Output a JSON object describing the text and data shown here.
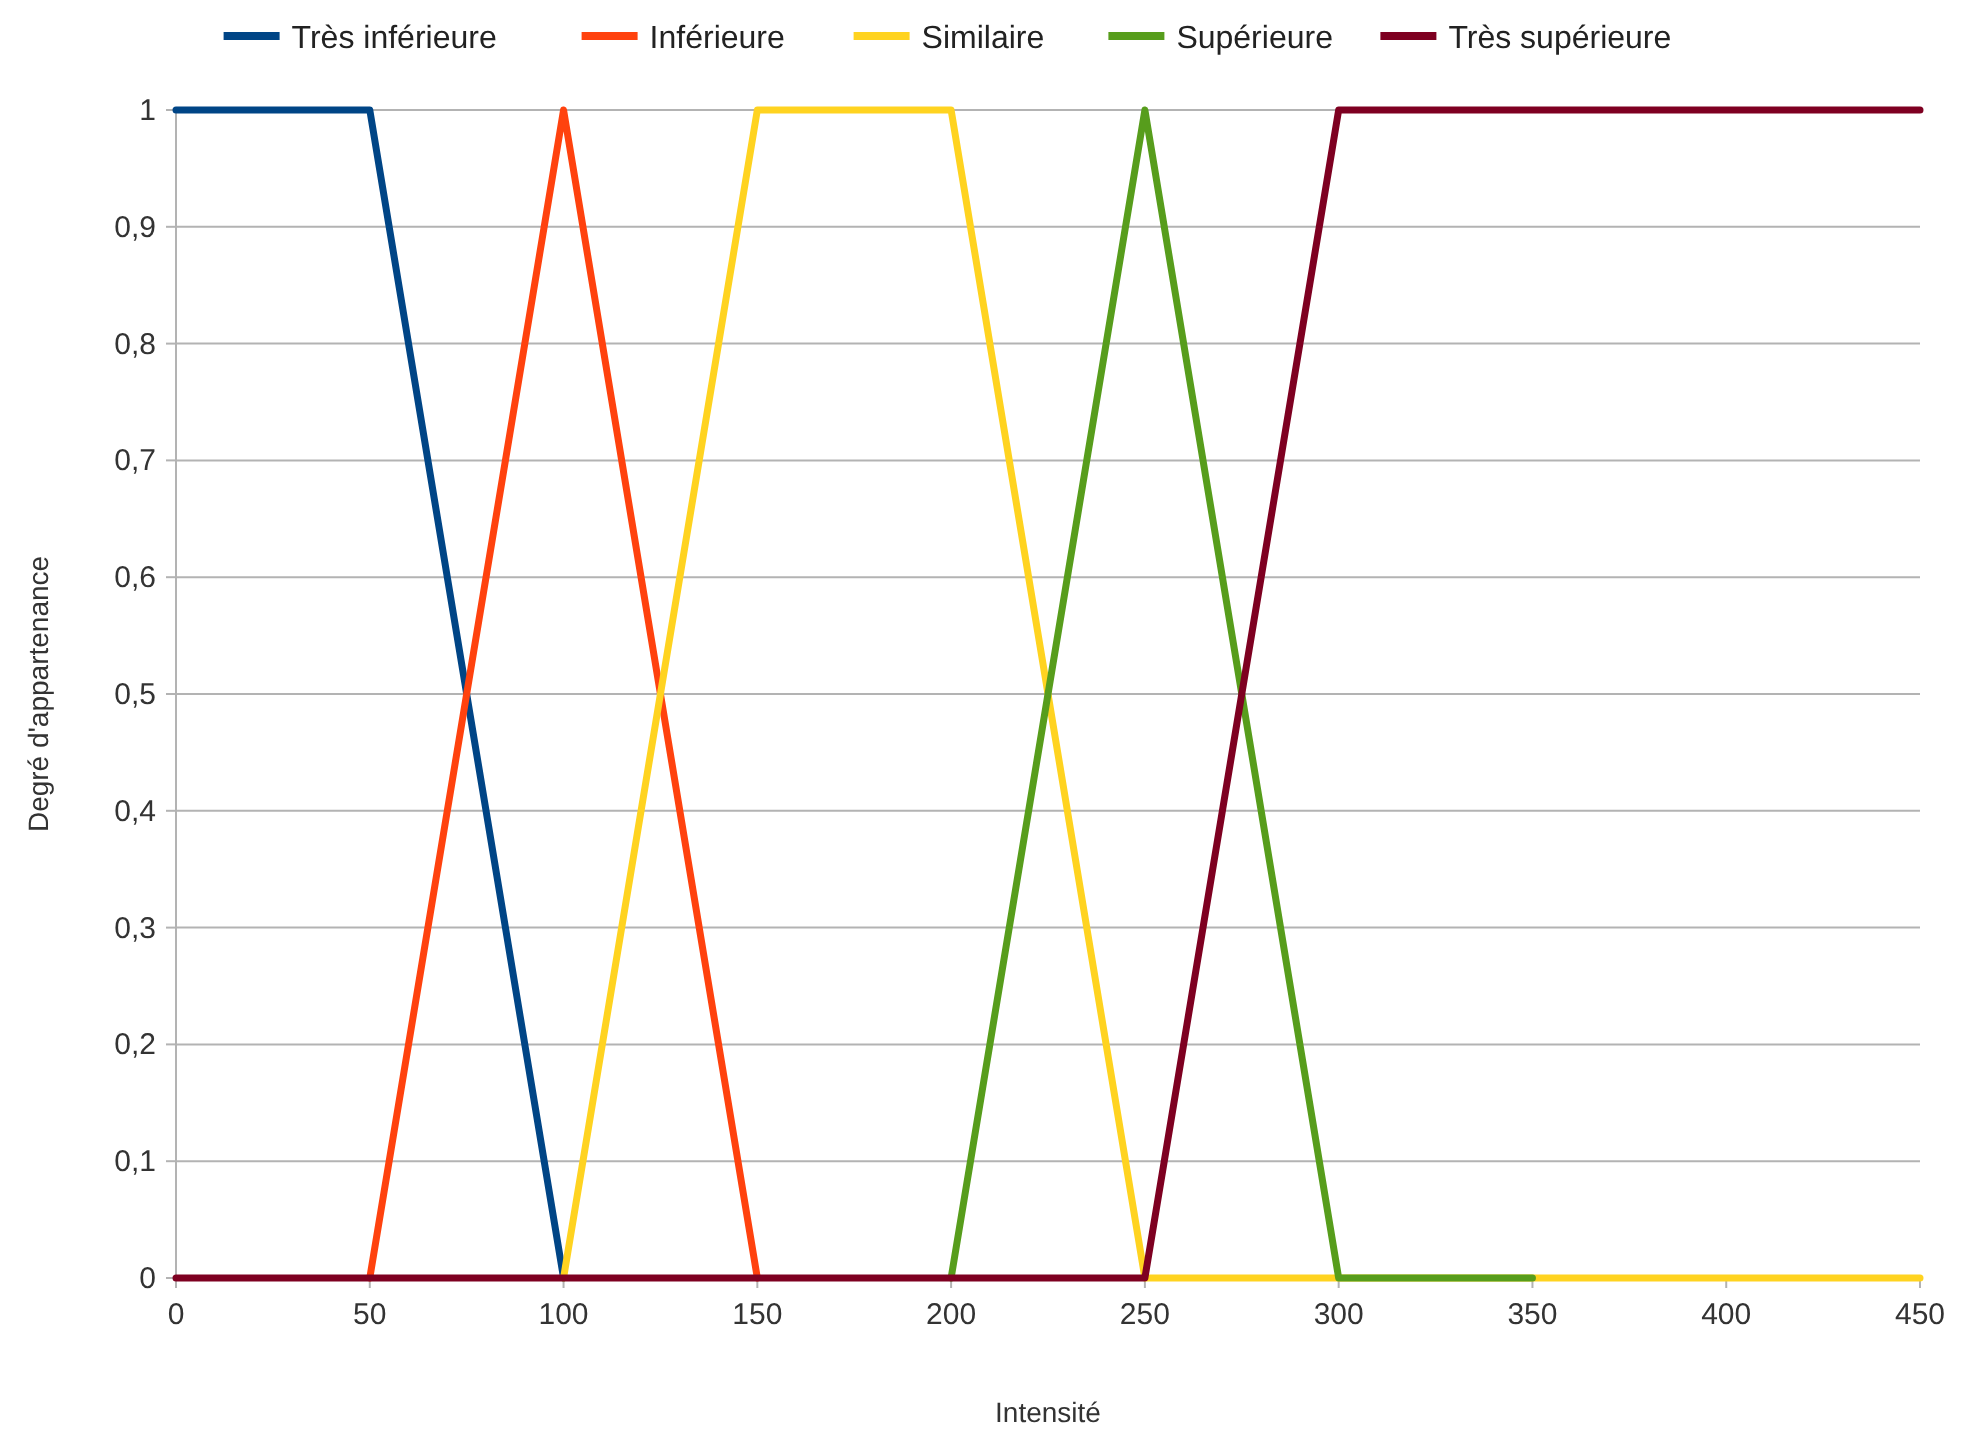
{
  "chart_data": {
    "type": "line",
    "xlabel": "Intensité",
    "ylabel": "Degré d'appartenance",
    "xlim": [
      0,
      450
    ],
    "xticks": [
      0,
      50,
      100,
      150,
      200,
      250,
      300,
      350,
      400,
      450
    ],
    "ylim": [
      0,
      1
    ],
    "yticks": [
      0,
      {
        "value": 0.1,
        "label": "0,1"
      },
      {
        "value": 0.2,
        "label": "0,2"
      },
      {
        "value": 0.3,
        "label": "0,3"
      },
      {
        "value": 0.4,
        "label": "0,4"
      },
      {
        "value": 0.5,
        "label": "0,5"
      },
      {
        "value": 0.6,
        "label": "0,6"
      },
      {
        "value": 0.7,
        "label": "0,7"
      },
      {
        "value": 0.8,
        "label": "0,8"
      },
      {
        "value": 0.9,
        "label": "0,9"
      },
      1
    ],
    "grid": "y",
    "legend": "top",
    "line_style": "solid",
    "series": [
      {
        "name": "Très inférieure",
        "color": "#004586",
        "x": [
          0,
          50,
          100
        ],
        "values": [
          1,
          1,
          0
        ]
      },
      {
        "name": "Inférieure",
        "color": "#ff420e",
        "x": [
          50,
          100,
          150
        ],
        "values": [
          0,
          1,
          0
        ]
      },
      {
        "name": "Similaire",
        "color": "#ffd320",
        "x": [
          100,
          150,
          200,
          250,
          450
        ],
        "values": [
          0,
          1,
          1,
          0,
          0
        ]
      },
      {
        "name": "Supérieure",
        "color": "#579d1c",
        "x": [
          200,
          250,
          300,
          350
        ],
        "values": [
          0,
          1,
          0,
          0
        ]
      },
      {
        "name": "Très supérieure",
        "color": "#7e0021",
        "x": [
          0,
          250,
          300,
          450
        ],
        "values": [
          0,
          0,
          1,
          1
        ]
      }
    ]
  }
}
